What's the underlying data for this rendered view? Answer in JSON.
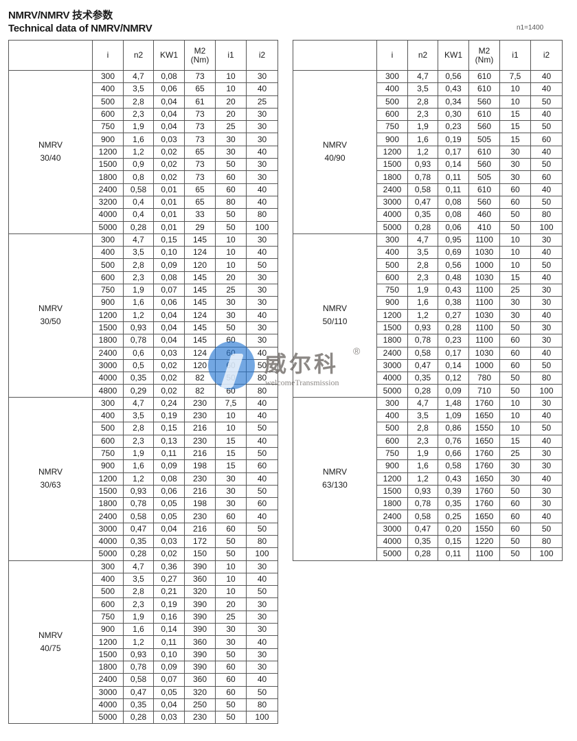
{
  "header": {
    "title_cn": "NMRV/NMRV 技术参数",
    "title_en": "Technical data of NMRV/NMRV",
    "n1": "n1=1400"
  },
  "columns": [
    "i",
    "n2",
    "KW1",
    "M2\n(Nm)",
    "i1",
    "i2"
  ],
  "watermark": {
    "brand_cn": "威尔科",
    "brand_en": "welcomeTransmission",
    "registered": "®",
    "logo_color": "#2878d2"
  },
  "tables": [
    {
      "groups": [
        {
          "model": "NMRV",
          "size": "30/40",
          "rows": [
            [
              "300",
              "4,7",
              "0,08",
              "73",
              "10",
              "30"
            ],
            [
              "400",
              "3,5",
              "0,06",
              "65",
              "10",
              "40"
            ],
            [
              "500",
              "2,8",
              "0,04",
              "61",
              "20",
              "25"
            ],
            [
              "600",
              "2,3",
              "0,04",
              "73",
              "20",
              "30"
            ],
            [
              "750",
              "1,9",
              "0,04",
              "73",
              "25",
              "30"
            ],
            [
              "900",
              "1,6",
              "0,03",
              "73",
              "30",
              "30"
            ],
            [
              "1200",
              "1,2",
              "0,02",
              "65",
              "30",
              "40"
            ],
            [
              "1500",
              "0,9",
              "0,02",
              "73",
              "50",
              "30"
            ],
            [
              "1800",
              "0,8",
              "0,02",
              "73",
              "60",
              "30"
            ],
            [
              "2400",
              "0,58",
              "0,01",
              "65",
              "60",
              "40"
            ],
            [
              "3200",
              "0,4",
              "0,01",
              "65",
              "80",
              "40"
            ],
            [
              "4000",
              "0,4",
              "0,01",
              "33",
              "50",
              "80"
            ],
            [
              "5000",
              "0,28",
              "0,01",
              "29",
              "50",
              "100"
            ]
          ]
        },
        {
          "model": "NMRV",
          "size": "30/50",
          "rows": [
            [
              "300",
              "4,7",
              "0,15",
              "145",
              "10",
              "30"
            ],
            [
              "400",
              "3,5",
              "0,10",
              "124",
              "10",
              "40"
            ],
            [
              "500",
              "2,8",
              "0,09",
              "120",
              "10",
              "50"
            ],
            [
              "600",
              "2,3",
              "0,08",
              "145",
              "20",
              "30"
            ],
            [
              "750",
              "1,9",
              "0,07",
              "145",
              "25",
              "30"
            ],
            [
              "900",
              "1,6",
              "0,06",
              "145",
              "30",
              "30"
            ],
            [
              "1200",
              "1,2",
              "0,04",
              "124",
              "30",
              "40"
            ],
            [
              "1500",
              "0,93",
              "0,04",
              "145",
              "50",
              "30"
            ],
            [
              "1800",
              "0,78",
              "0,04",
              "145",
              "60",
              "30"
            ],
            [
              "2400",
              "0,6",
              "0,03",
              "124",
              "60",
              "40"
            ],
            [
              "3000",
              "0,5",
              "0,02",
              "120",
              "60",
              "50"
            ],
            [
              "4000",
              "0,35",
              "0,02",
              "82",
              "50",
              "80"
            ],
            [
              "4800",
              "0,29",
              "0,02",
              "82",
              "60",
              "80"
            ]
          ]
        },
        {
          "model": "NMRV",
          "size": "30/63",
          "rows": [
            [
              "300",
              "4,7",
              "0,24",
              "230",
              "7,5",
              "40"
            ],
            [
              "400",
              "3,5",
              "0,19",
              "230",
              "10",
              "40"
            ],
            [
              "500",
              "2,8",
              "0,15",
              "216",
              "10",
              "50"
            ],
            [
              "600",
              "2,3",
              "0,13",
              "230",
              "15",
              "40"
            ],
            [
              "750",
              "1,9",
              "0,11",
              "216",
              "15",
              "50"
            ],
            [
              "900",
              "1,6",
              "0,09",
              "198",
              "15",
              "60"
            ],
            [
              "1200",
              "1,2",
              "0,08",
              "230",
              "30",
              "40"
            ],
            [
              "1500",
              "0,93",
              "0,06",
              "216",
              "30",
              "50"
            ],
            [
              "1800",
              "0,78",
              "0,05",
              "198",
              "30",
              "60"
            ],
            [
              "2400",
              "0,58",
              "0,05",
              "230",
              "60",
              "40"
            ],
            [
              "3000",
              "0,47",
              "0,04",
              "216",
              "60",
              "50"
            ],
            [
              "4000",
              "0,35",
              "0,03",
              "172",
              "50",
              "80"
            ],
            [
              "5000",
              "0,28",
              "0,02",
              "150",
              "50",
              "100"
            ]
          ]
        },
        {
          "model": "NMRV",
          "size": "40/75",
          "rows": [
            [
              "300",
              "4,7",
              "0,36",
              "390",
              "10",
              "30"
            ],
            [
              "400",
              "3,5",
              "0,27",
              "360",
              "10",
              "40"
            ],
            [
              "500",
              "2,8",
              "0,21",
              "320",
              "10",
              "50"
            ],
            [
              "600",
              "2,3",
              "0,19",
              "390",
              "20",
              "30"
            ],
            [
              "750",
              "1,9",
              "0,16",
              "390",
              "25",
              "30"
            ],
            [
              "900",
              "1,6",
              "0,14",
              "390",
              "30",
              "30"
            ],
            [
              "1200",
              "1,2",
              "0,11",
              "360",
              "30",
              "40"
            ],
            [
              "1500",
              "0,93",
              "0,10",
              "390",
              "50",
              "30"
            ],
            [
              "1800",
              "0,78",
              "0,09",
              "390",
              "60",
              "30"
            ],
            [
              "2400",
              "0,58",
              "0,07",
              "360",
              "60",
              "40"
            ],
            [
              "3000",
              "0,47",
              "0,05",
              "320",
              "60",
              "50"
            ],
            [
              "4000",
              "0,35",
              "0,04",
              "250",
              "50",
              "80"
            ],
            [
              "5000",
              "0,28",
              "0,03",
              "230",
              "50",
              "100"
            ]
          ]
        }
      ]
    },
    {
      "groups": [
        {
          "model": "NMRV",
          "size": "40/90",
          "rows": [
            [
              "300",
              "4,7",
              "0,56",
              "610",
              "7,5",
              "40"
            ],
            [
              "400",
              "3,5",
              "0,43",
              "610",
              "10",
              "40"
            ],
            [
              "500",
              "2,8",
              "0,34",
              "560",
              "10",
              "50"
            ],
            [
              "600",
              "2,3",
              "0,30",
              "610",
              "15",
              "40"
            ],
            [
              "750",
              "1,9",
              "0,23",
              "560",
              "15",
              "50"
            ],
            [
              "900",
              "1,6",
              "0,19",
              "505",
              "15",
              "60"
            ],
            [
              "1200",
              "1,2",
              "0,17",
              "610",
              "30",
              "40"
            ],
            [
              "1500",
              "0,93",
              "0,14",
              "560",
              "30",
              "50"
            ],
            [
              "1800",
              "0,78",
              "0,11",
              "505",
              "30",
              "60"
            ],
            [
              "2400",
              "0,58",
              "0,11",
              "610",
              "60",
              "40"
            ],
            [
              "3000",
              "0,47",
              "0,08",
              "560",
              "60",
              "50"
            ],
            [
              "4000",
              "0,35",
              "0,08",
              "460",
              "50",
              "80"
            ],
            [
              "5000",
              "0,28",
              "0,06",
              "410",
              "50",
              "100"
            ]
          ]
        },
        {
          "model": "NMRV",
          "size": "50/110",
          "rows": [
            [
              "300",
              "4,7",
              "0,95",
              "1100",
              "10",
              "30"
            ],
            [
              "400",
              "3,5",
              "0,69",
              "1030",
              "10",
              "40"
            ],
            [
              "500",
              "2,8",
              "0,56",
              "1000",
              "10",
              "50"
            ],
            [
              "600",
              "2,3",
              "0,48",
              "1030",
              "15",
              "40"
            ],
            [
              "750",
              "1,9",
              "0,43",
              "1100",
              "25",
              "30"
            ],
            [
              "900",
              "1,6",
              "0,38",
              "1100",
              "30",
              "30"
            ],
            [
              "1200",
              "1,2",
              "0,27",
              "1030",
              "30",
              "40"
            ],
            [
              "1500",
              "0,93",
              "0,28",
              "1100",
              "50",
              "30"
            ],
            [
              "1800",
              "0,78",
              "0,23",
              "1100",
              "60",
              "30"
            ],
            [
              "2400",
              "0,58",
              "0,17",
              "1030",
              "60",
              "40"
            ],
            [
              "3000",
              "0,47",
              "0,14",
              "1000",
              "60",
              "50"
            ],
            [
              "4000",
              "0,35",
              "0,12",
              "780",
              "50",
              "80"
            ],
            [
              "5000",
              "0,28",
              "0,09",
              "710",
              "50",
              "100"
            ]
          ]
        },
        {
          "model": "NMRV",
          "size": "63/130",
          "rows": [
            [
              "300",
              "4,7",
              "1,48",
              "1760",
              "10",
              "30"
            ],
            [
              "400",
              "3,5",
              "1,09",
              "1650",
              "10",
              "40"
            ],
            [
              "500",
              "2,8",
              "0,86",
              "1550",
              "10",
              "50"
            ],
            [
              "600",
              "2,3",
              "0,76",
              "1650",
              "15",
              "40"
            ],
            [
              "750",
              "1,9",
              "0,66",
              "1760",
              "25",
              "30"
            ],
            [
              "900",
              "1,6",
              "0,58",
              "1760",
              "30",
              "30"
            ],
            [
              "1200",
              "1,2",
              "0,43",
              "1650",
              "30",
              "40"
            ],
            [
              "1500",
              "0,93",
              "0,39",
              "1760",
              "50",
              "30"
            ],
            [
              "1800",
              "0,78",
              "0,35",
              "1760",
              "60",
              "30"
            ],
            [
              "2400",
              "0,58",
              "0,25",
              "1650",
              "60",
              "40"
            ],
            [
              "3000",
              "0,47",
              "0,20",
              "1550",
              "60",
              "50"
            ],
            [
              "4000",
              "0,35",
              "0,15",
              "1220",
              "50",
              "80"
            ],
            [
              "5000",
              "0,28",
              "0,11",
              "1100",
              "50",
              "100"
            ]
          ]
        }
      ]
    }
  ]
}
